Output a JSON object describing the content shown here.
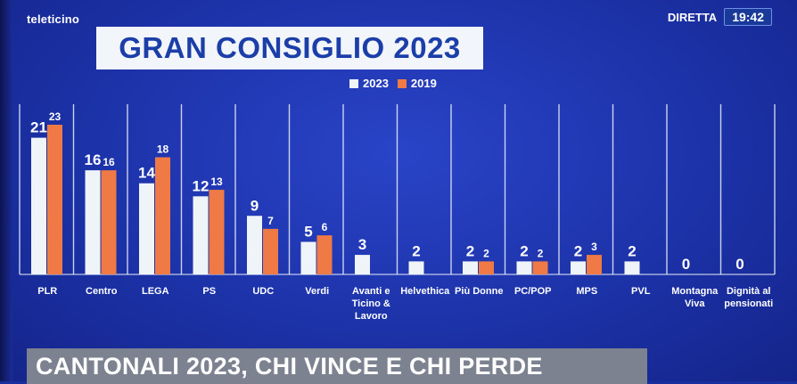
{
  "channel": {
    "logo": "teleticino"
  },
  "live": {
    "label": "DIRETTA",
    "time": "19:42"
  },
  "title": "GRAN CONSIGLIO 2023",
  "headline": "CANTONALI 2023, CHI VINCE E CHI PERDE",
  "colors": {
    "series_2023": "#eef4f8",
    "series_2019": "#f07a45",
    "background": "#1c32a8"
  },
  "chart_data": {
    "type": "bar",
    "title": "GRAN CONSIGLIO 2023",
    "categories": [
      "PLR",
      "Centro",
      "LEGA",
      "PS",
      "UDC",
      "Verdi",
      "Avanti e Ticino & Lavoro",
      "Helvethica",
      "Più Donne",
      "PC/POP",
      "MPS",
      "PVL",
      "Montagna Viva",
      "Dignità al pensionati"
    ],
    "category_lines": [
      [
        "PLR"
      ],
      [
        "Centro"
      ],
      [
        "LEGA"
      ],
      [
        "PS"
      ],
      [
        "UDC"
      ],
      [
        "Verdi"
      ],
      [
        "Avanti e",
        "Ticino &",
        "Lavoro"
      ],
      [
        "Helvethica"
      ],
      [
        "Più Donne"
      ],
      [
        "PC/POP"
      ],
      [
        "MPS"
      ],
      [
        "PVL"
      ],
      [
        "Montagna",
        "Viva"
      ],
      [
        "Dignità al",
        "pensionati"
      ]
    ],
    "series": [
      {
        "name": "2023",
        "values": [
          21,
          16,
          14,
          12,
          9,
          5,
          3,
          2,
          2,
          2,
          2,
          2,
          0,
          0
        ]
      },
      {
        "name": "2019",
        "values": [
          23,
          16,
          18,
          13,
          7,
          6,
          null,
          null,
          2,
          2,
          3,
          null,
          null,
          null
        ]
      }
    ],
    "ylim": [
      0,
      25
    ],
    "legend_position": "top-center"
  }
}
